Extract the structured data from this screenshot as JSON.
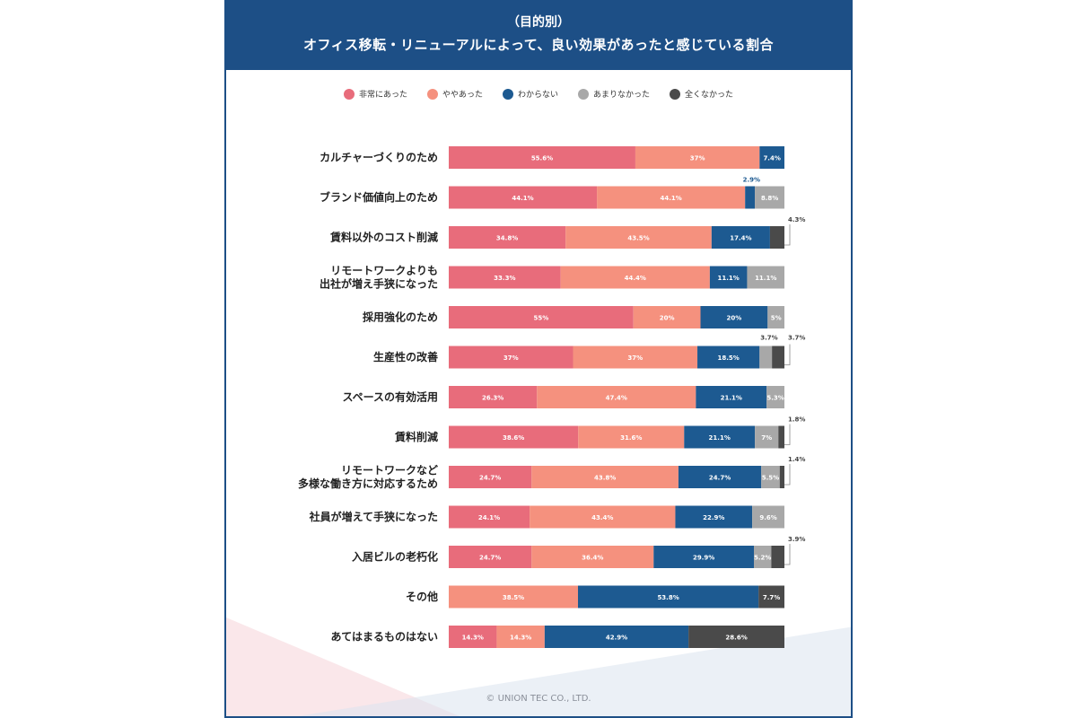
{
  "header": {
    "subtitle": "（目的別）",
    "title": "オフィス移転・リニューアルによって、良い効果があったと感じている割合"
  },
  "footer": {
    "copyright": "© UNION TEC CO., LTD."
  },
  "colors": {
    "header_bg": "#1d4f86",
    "non_jou": "#e86c7b",
    "yaya": "#f5917e",
    "wakaranai": "#1d5a91",
    "amari": "#a8a8a8",
    "mattaku": "#4a4a4a"
  },
  "chart_data": {
    "type": "bar",
    "orientation": "horizontal",
    "stacked": true,
    "legend_position": "top",
    "series": [
      {
        "name": "非常にあった",
        "color": "#e86c7b"
      },
      {
        "name": "ややあった",
        "color": "#f5917e"
      },
      {
        "name": "わからない",
        "color": "#1d5a91"
      },
      {
        "name": "あまりなかった",
        "color": "#a8a8a8"
      },
      {
        "name": "全くなかった",
        "color": "#4a4a4a"
      }
    ],
    "rows": [
      {
        "label": [
          "カルチャーづくりのため"
        ],
        "values": [
          55.6,
          37,
          7.4,
          0,
          0
        ],
        "labels": [
          "55.6%",
          "37%",
          "7.4%",
          "",
          ""
        ],
        "external": []
      },
      {
        "label": [
          "ブランド価値向上のため"
        ],
        "values": [
          44.1,
          44.1,
          2.9,
          8.8,
          0
        ],
        "labels": [
          "44.1%",
          "44.1%",
          "",
          "8.8%",
          ""
        ],
        "external": [
          {
            "seg": 2,
            "text": "2.9%"
          }
        ]
      },
      {
        "label": [
          "賃料以外のコスト削減"
        ],
        "values": [
          34.8,
          43.5,
          17.4,
          0,
          4.3
        ],
        "labels": [
          "34.8%",
          "43.5%",
          "17.4%",
          "",
          ""
        ],
        "external": [
          {
            "seg": 4,
            "text": "4.3%"
          }
        ]
      },
      {
        "label": [
          "リモートワークよりも",
          "出社が増え手狭になった"
        ],
        "values": [
          33.3,
          44.4,
          11.1,
          11.1,
          0
        ],
        "labels": [
          "33.3%",
          "44.4%",
          "11.1%",
          "11.1%",
          ""
        ],
        "external": []
      },
      {
        "label": [
          "採用強化のため"
        ],
        "values": [
          55,
          20,
          20,
          5,
          0
        ],
        "labels": [
          "55%",
          "20%",
          "20%",
          "5%",
          ""
        ],
        "external": []
      },
      {
        "label": [
          "生産性の改善"
        ],
        "values": [
          37,
          37,
          18.5,
          3.7,
          3.7
        ],
        "labels": [
          "37%",
          "37%",
          "18.5%",
          "",
          ""
        ],
        "external": [
          {
            "seg": 3,
            "text": "3.7%"
          },
          {
            "seg": 4,
            "text": "3.7%"
          }
        ]
      },
      {
        "label": [
          "スペースの有効活用"
        ],
        "values": [
          26.3,
          47.4,
          21.1,
          5.3,
          0
        ],
        "labels": [
          "26.3%",
          "47.4%",
          "21.1%",
          "5.3%",
          ""
        ],
        "external": []
      },
      {
        "label": [
          "賃料削減"
        ],
        "values": [
          38.6,
          31.6,
          21.1,
          7,
          1.8
        ],
        "labels": [
          "38.6%",
          "31.6%",
          "21.1%",
          "7%",
          ""
        ],
        "external": [
          {
            "seg": 4,
            "text": "1.8%"
          }
        ]
      },
      {
        "label": [
          "リモートワークなど",
          "多様な働き方に対応するため"
        ],
        "values": [
          24.7,
          43.8,
          24.7,
          5.5,
          1.4
        ],
        "labels": [
          "24.7%",
          "43.8%",
          "24.7%",
          "5.5%",
          ""
        ],
        "external": [
          {
            "seg": 4,
            "text": "1.4%"
          }
        ]
      },
      {
        "label": [
          "社員が増えて手狭になった"
        ],
        "values": [
          24.1,
          43.4,
          22.9,
          9.6,
          0
        ],
        "labels": [
          "24.1%",
          "43.4%",
          "22.9%",
          "9.6%",
          ""
        ],
        "external": []
      },
      {
        "label": [
          "入居ビルの老朽化"
        ],
        "values": [
          24.7,
          36.4,
          29.9,
          5.2,
          3.9
        ],
        "labels": [
          "24.7%",
          "36.4%",
          "29.9%",
          "5.2%",
          ""
        ],
        "external": [
          {
            "seg": 4,
            "text": "3.9%"
          }
        ]
      },
      {
        "label": [
          "その他"
        ],
        "values": [
          0,
          38.5,
          53.8,
          0,
          7.7
        ],
        "labels": [
          "",
          "38.5%",
          "53.8%",
          "",
          "7.7%"
        ],
        "external": []
      },
      {
        "label": [
          "あてはまるものはない"
        ],
        "values": [
          14.3,
          14.3,
          42.9,
          0,
          28.6
        ],
        "labels": [
          "14.3%",
          "14.3%",
          "42.9%",
          "",
          "28.6%"
        ],
        "external": []
      }
    ]
  }
}
